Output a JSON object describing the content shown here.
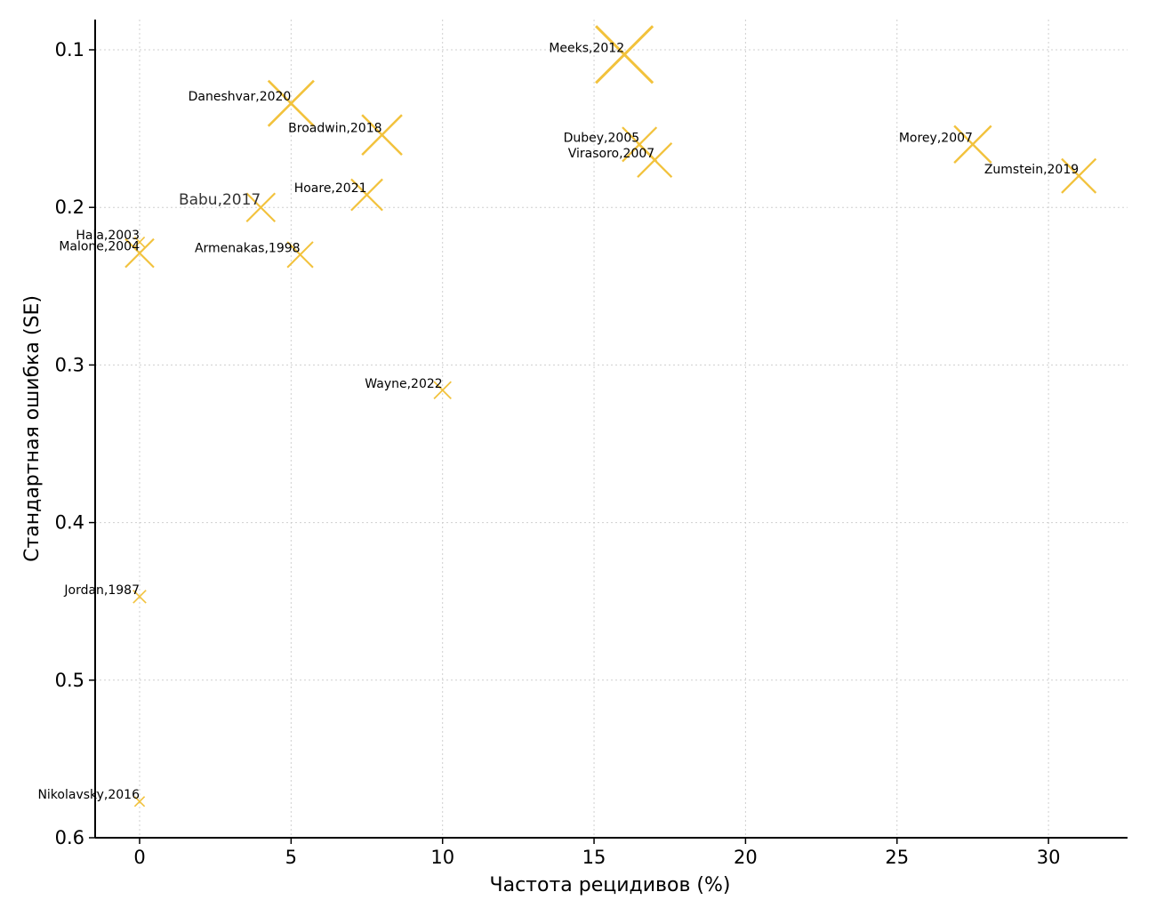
{
  "colors": {
    "marker": "#f2c23c",
    "grid": "#cfcfcf",
    "axis": "#000000"
  },
  "chart_data": {
    "type": "scatter",
    "title": "",
    "xlabel": "Частота рецидивов (%)",
    "ylabel": "Стандартная ошибка (SE)",
    "xlim": [
      -1.5,
      32.5
    ],
    "ylim": [
      0.6,
      0.08
    ],
    "y_inverted": true,
    "grid": true,
    "marker": "x",
    "x_ticks": [
      0,
      5,
      10,
      15,
      20,
      25,
      30
    ],
    "x_tick_labels": [
      "0",
      "5",
      "10",
      "15",
      "20",
      "25",
      "30"
    ],
    "y_ticks": [
      0.1,
      0.2,
      0.3,
      0.4,
      0.5,
      0.6
    ],
    "y_tick_labels": [
      "0.1",
      "0.2",
      "0.3",
      "0.4",
      "0.5",
      "0.6"
    ],
    "points": [
      {
        "label": "Meeks,2012",
        "x": 16,
        "y": 0.103,
        "size": 2.0
      },
      {
        "label": "Daneshvar,2020",
        "x": 5,
        "y": 0.134,
        "size": 1.6
      },
      {
        "label": "Broadwin,2018",
        "x": 8,
        "y": 0.154,
        "size": 1.4
      },
      {
        "label": "Dubey,2005",
        "x": 16.5,
        "y": 0.16,
        "size": 1.2
      },
      {
        "label": "Virasoro,2007",
        "x": 17,
        "y": 0.17,
        "size": 1.2
      },
      {
        "label": "Morey,2007",
        "x": 27.5,
        "y": 0.16,
        "size": 1.3
      },
      {
        "label": "Zumstein,2019",
        "x": 31,
        "y": 0.18,
        "size": 1.2
      },
      {
        "label": "Hoare,2021",
        "x": 7.5,
        "y": 0.192,
        "size": 1.1
      },
      {
        "label": "Babu,2017",
        "x": 4,
        "y": 0.2,
        "size": 1.0
      },
      {
        "label": "Hala,2003",
        "x": 0,
        "y": 0.222,
        "size": 0.35
      },
      {
        "label": "Malone,2004",
        "x": 0,
        "y": 0.229,
        "size": 1.0
      },
      {
        "label": "Armenakas,1998",
        "x": 5.3,
        "y": 0.23,
        "size": 0.9
      },
      {
        "label": "Wayne,2022",
        "x": 10,
        "y": 0.316,
        "size": 0.6
      },
      {
        "label": "Jordan,1987",
        "x": 0,
        "y": 0.447,
        "size": 0.45
      },
      {
        "label": "Nikolavsky,2016",
        "x": 0,
        "y": 0.577,
        "size": 0.35
      }
    ]
  }
}
